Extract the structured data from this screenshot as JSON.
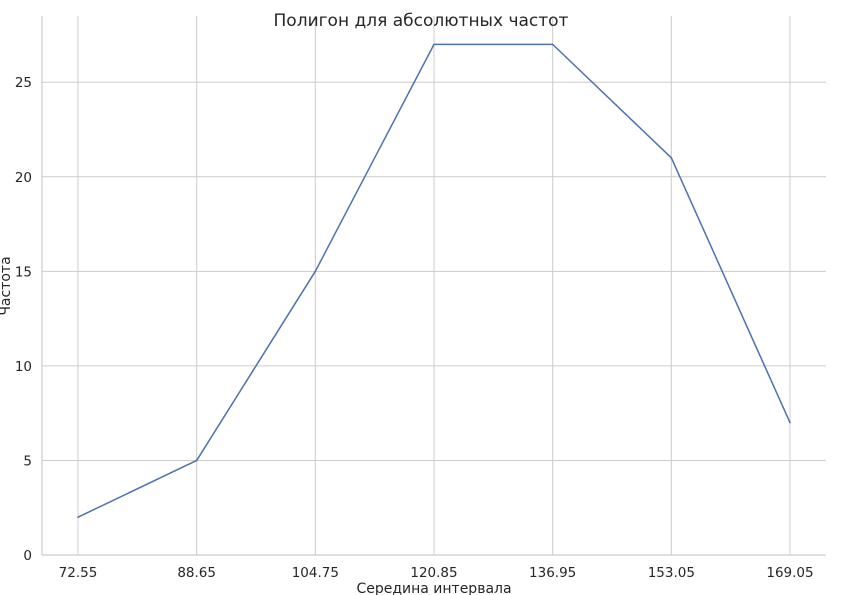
{
  "chart_data": {
    "type": "line",
    "title": "Полигон для абсолютных частот",
    "xlabel": "Середина интервала",
    "ylabel": "Частота",
    "x": [
      "72.55",
      "88.65",
      "104.75",
      "120.85",
      "136.95",
      "153.05",
      "169.05"
    ],
    "series": [
      {
        "values": [
          2,
          5,
          15,
          27,
          27,
          21,
          7
        ]
      }
    ],
    "yticks": [
      0,
      5,
      10,
      15,
      20,
      25
    ],
    "ylim": [
      0,
      28.5
    ],
    "grid": true,
    "colors": {
      "line": "#4c72b0"
    }
  }
}
